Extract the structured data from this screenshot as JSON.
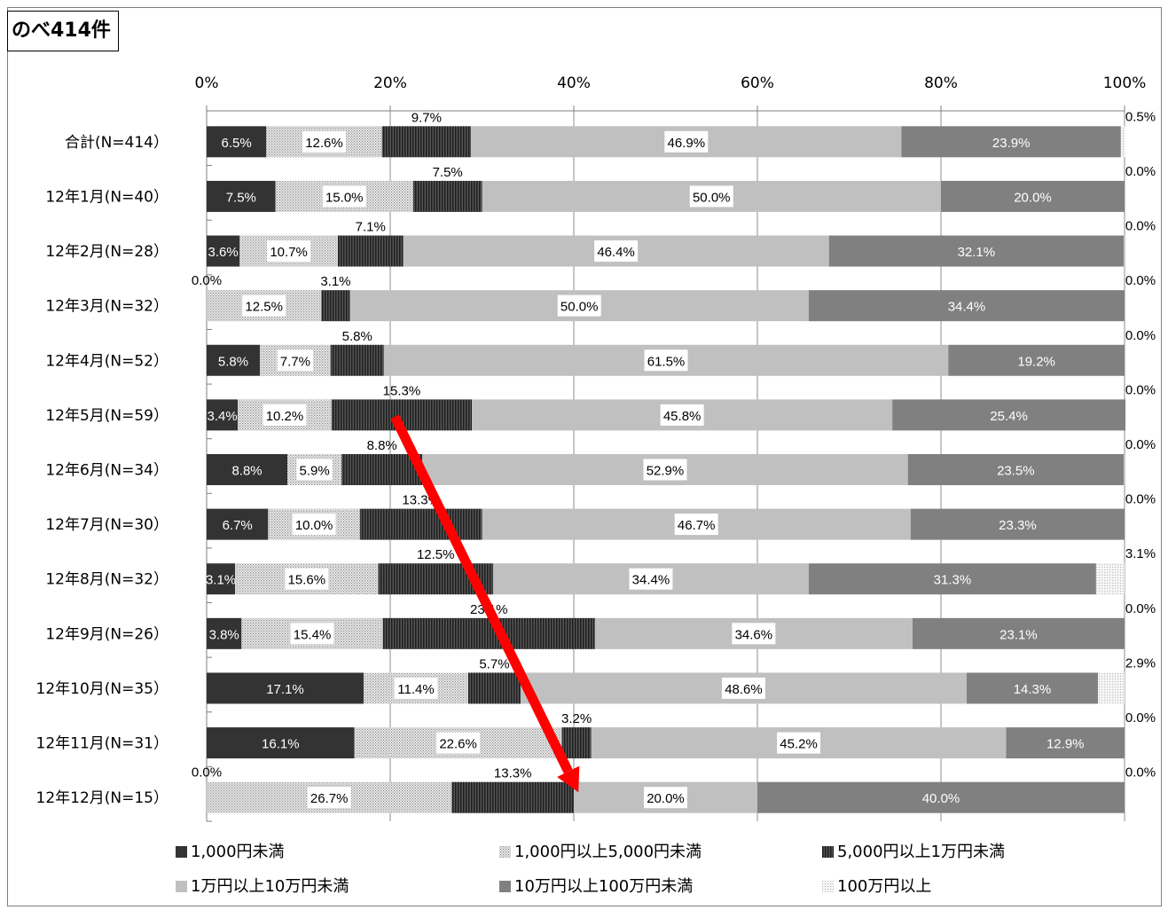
{
  "badge": "のべ414件",
  "chart_data": {
    "type": "bar",
    "orientation": "horizontal",
    "stacked": "100%",
    "xlim": [
      0,
      100
    ],
    "x_ticks": [
      "0%",
      "20%",
      "40%",
      "60%",
      "80%",
      "100%"
    ],
    "categories": [
      "合計(N=414）",
      "12年1月(N=40）",
      "12年2月(N=28）",
      "12年3月(N=32）",
      "12年4月(N=52）",
      "12年5月(N=59）",
      "12年6月(N=34）",
      "12年7月(N=30）",
      "12年8月(N=32）",
      "12年9月(N=26）",
      "12年10月(N=35）",
      "12年11月(N=31）",
      "12年12月(N=15）"
    ],
    "series": [
      {
        "name": "1,000円未満",
        "color": "#333333",
        "text_color": "#ffffff",
        "values": [
          6.5,
          7.5,
          3.6,
          0.0,
          5.8,
          3.4,
          8.8,
          6.7,
          3.1,
          3.8,
          17.1,
          16.1,
          0.0
        ],
        "labels": [
          "6.5%",
          "7.5%",
          "3.6%",
          "0.0%",
          "5.8%",
          "3.4%",
          "8.8%",
          "6.7%",
          "3.1%",
          "3.8%",
          "17.1%",
          "16.1%",
          "0.0%"
        ]
      },
      {
        "name": "1,000円以上5,000円未満",
        "color": "#d4d4d4",
        "text_color": "#000000",
        "pattern": "dots",
        "values": [
          12.6,
          15.0,
          10.7,
          12.5,
          7.7,
          10.2,
          5.9,
          10.0,
          15.6,
          15.4,
          11.4,
          22.6,
          26.7
        ],
        "labels": [
          "12.6%",
          "15.0%",
          "10.7%",
          "12.5%",
          "7.7%",
          "10.2%",
          "5.9%",
          "10.0%",
          "15.6%",
          "15.4%",
          "11.4%",
          "22.6%",
          "26.7%"
        ]
      },
      {
        "name": "5,000円以上1万円未満",
        "color": "#3a3a3a",
        "text_color": "#000000",
        "pattern": "vlines",
        "values": [
          9.7,
          7.5,
          7.1,
          3.1,
          5.8,
          15.3,
          8.8,
          13.3,
          12.5,
          23.1,
          5.7,
          3.2,
          13.3
        ],
        "labels": [
          "9.7%",
          "7.5%",
          "7.1%",
          "3.1%",
          "5.8%",
          "15.3%",
          "8.8%",
          "13.3%",
          "12.5%",
          "23.1%",
          "5.7%",
          "3.2%",
          "13.3%"
        ]
      },
      {
        "name": "1万円以上10万円未満",
        "color": "#c0c0c0",
        "text_color": "#000000",
        "values": [
          46.9,
          50.0,
          46.4,
          50.0,
          61.5,
          45.8,
          52.9,
          46.7,
          34.4,
          34.6,
          48.6,
          45.2,
          20.0
        ],
        "labels": [
          "46.9%",
          "50.0%",
          "46.4%",
          "50.0%",
          "61.5%",
          "45.8%",
          "52.9%",
          "46.7%",
          "34.4%",
          "34.6%",
          "48.6%",
          "45.2%",
          "20.0%"
        ]
      },
      {
        "name": "10万円以上100万円未満",
        "color": "#808080",
        "text_color": "#ffffff",
        "values": [
          23.9,
          20.0,
          32.1,
          34.4,
          19.2,
          25.4,
          23.5,
          23.3,
          31.3,
          23.1,
          14.3,
          12.9,
          40.0
        ],
        "labels": [
          "23.9%",
          "20.0%",
          "32.1%",
          "34.4%",
          "19.2%",
          "25.4%",
          "23.5%",
          "23.3%",
          "31.3%",
          "23.1%",
          "14.3%",
          "12.9%",
          "40.0%"
        ]
      },
      {
        "name": "100万円以上",
        "color": "#e6e6e6",
        "text_color": "#000000",
        "pattern": "fine",
        "values": [
          0.5,
          0.0,
          0.0,
          0.0,
          0.0,
          0.0,
          0.0,
          0.0,
          3.1,
          0.0,
          2.9,
          0.0,
          0.0
        ],
        "labels": [
          "0.5%",
          "0.0%",
          "0.0%",
          "0.0%",
          "0.0%",
          "0.0%",
          "0.0%",
          "0.0%",
          "3.1%",
          "0.0%",
          "2.9%",
          "0.0%",
          "0.0%"
        ]
      }
    ],
    "annotation": {
      "type": "arrow",
      "color": "#ff0000",
      "from_bar": "12年5月(N=59）",
      "to_bar": "12年12月(N=15）"
    },
    "legend_position": "bottom"
  }
}
